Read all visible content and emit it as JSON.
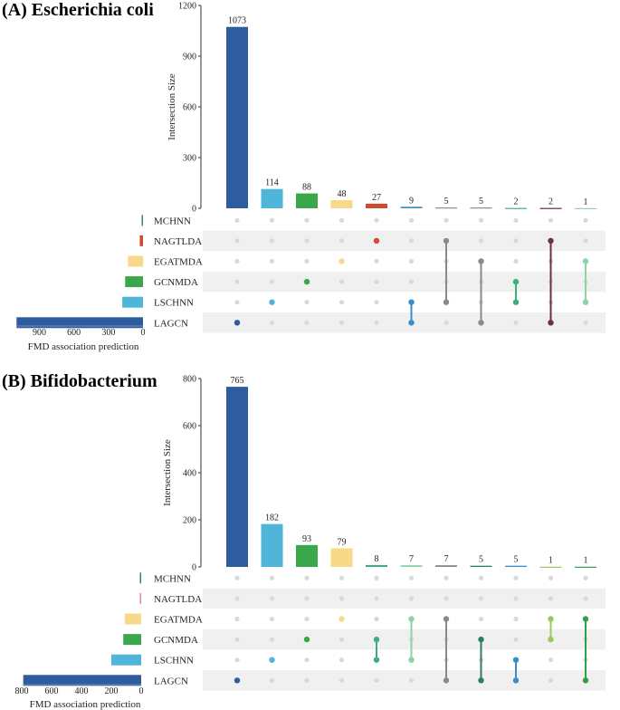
{
  "chart_data": [
    {
      "type": "upset",
      "panel_label": "(A) Escherichia coli",
      "ylabel": "Intersection Size",
      "ylim": [
        0,
        1200
      ],
      "yticks": [
        0,
        300,
        600,
        900,
        1200
      ],
      "sets": [
        "MCHNN",
        "NAGTLDA",
        "EGATMDA",
        "GCNMDA",
        "LSCHNN",
        "LAGCN"
      ],
      "set_colors": [
        "#2e8b57",
        "#d04a32",
        "#f8d98a",
        "#3aa84a",
        "#4fb6da",
        "#2e5c9e"
      ],
      "set_size_values": [
        8,
        28,
        130,
        155,
        180,
        1098
      ],
      "set_size_xlabel": "FMD association prediction",
      "set_size_xlim": [
        0,
        1100
      ],
      "set_size_ticks": [
        900,
        600,
        300,
        0
      ],
      "intersections": [
        {
          "value": 1073,
          "sets": [
            "LAGCN"
          ],
          "color": "#2e5c9e"
        },
        {
          "value": 114,
          "sets": [
            "LSCHNN"
          ],
          "color": "#4fb6da"
        },
        {
          "value": 88,
          "sets": [
            "GCNMDA"
          ],
          "color": "#3aa84a"
        },
        {
          "value": 48,
          "sets": [
            "EGATMDA"
          ],
          "color": "#f8d98a"
        },
        {
          "value": 27,
          "sets": [
            "NAGTLDA"
          ],
          "color": "#d04a32"
        },
        {
          "value": 9,
          "sets": [
            "LSCHNN",
            "LAGCN"
          ],
          "color": "#3a8ec4"
        },
        {
          "value": 5,
          "sets": [
            "NAGTLDA",
            "LSCHNN"
          ],
          "color": "#8a8a8a"
        },
        {
          "value": 5,
          "sets": [
            "EGATMDA",
            "LAGCN"
          ],
          "color": "#8a8a8a"
        },
        {
          "value": 2,
          "sets": [
            "GCNMDA",
            "LSCHNN"
          ],
          "color": "#3db07a"
        },
        {
          "value": 2,
          "sets": [
            "NAGTLDA",
            "LAGCN"
          ],
          "color": "#6a2f45"
        },
        {
          "value": 1,
          "sets": [
            "EGATMDA",
            "LSCHNN"
          ],
          "color": "#8fd1a8"
        }
      ]
    },
    {
      "type": "upset",
      "panel_label": "(B) Bifidobacterium",
      "ylabel": "Intersection Size",
      "ylim": [
        0,
        800
      ],
      "yticks": [
        0,
        200,
        400,
        600,
        800
      ],
      "sets": [
        "MCHNN",
        "NAGTLDA",
        "EGATMDA",
        "GCNMDA",
        "LSCHNN",
        "LAGCN"
      ],
      "set_colors": [
        "#2e8b57",
        "#e08a8a",
        "#f8d98a",
        "#3aa84a",
        "#4fb6da",
        "#2e5c9e"
      ],
      "set_size_values": [
        5,
        2,
        110,
        120,
        200,
        790
      ],
      "set_size_xlabel": "FMD association prediction",
      "set_size_xlim": [
        0,
        800
      ],
      "set_size_ticks": [
        800,
        600,
        400,
        200,
        0
      ],
      "intersections": [
        {
          "value": 765,
          "sets": [
            "LAGCN"
          ],
          "color": "#2e5c9e"
        },
        {
          "value": 182,
          "sets": [
            "LSCHNN"
          ],
          "color": "#4fb6da"
        },
        {
          "value": 93,
          "sets": [
            "GCNMDA"
          ],
          "color": "#3aa84a"
        },
        {
          "value": 79,
          "sets": [
            "EGATMDA"
          ],
          "color": "#f8d98a"
        },
        {
          "value": 8,
          "sets": [
            "GCNMDA",
            "LSCHNN"
          ],
          "color": "#3db07a"
        },
        {
          "value": 7,
          "sets": [
            "EGATMDA",
            "LSCHNN"
          ],
          "color": "#8fd1a8"
        },
        {
          "value": 7,
          "sets": [
            "EGATMDA",
            "LAGCN"
          ],
          "color": "#8a8a8a"
        },
        {
          "value": 5,
          "sets": [
            "GCNMDA",
            "LAGCN"
          ],
          "color": "#2e7d6b"
        },
        {
          "value": 5,
          "sets": [
            "LSCHNN",
            "LAGCN"
          ],
          "color": "#3a8ec4"
        },
        {
          "value": 1,
          "sets": [
            "EGATMDA",
            "GCNMDA"
          ],
          "color": "#98c95a"
        },
        {
          "value": 1,
          "sets": [
            "EGATMDA",
            "LAGCN"
          ],
          "color": "#2fa046"
        }
      ]
    }
  ]
}
